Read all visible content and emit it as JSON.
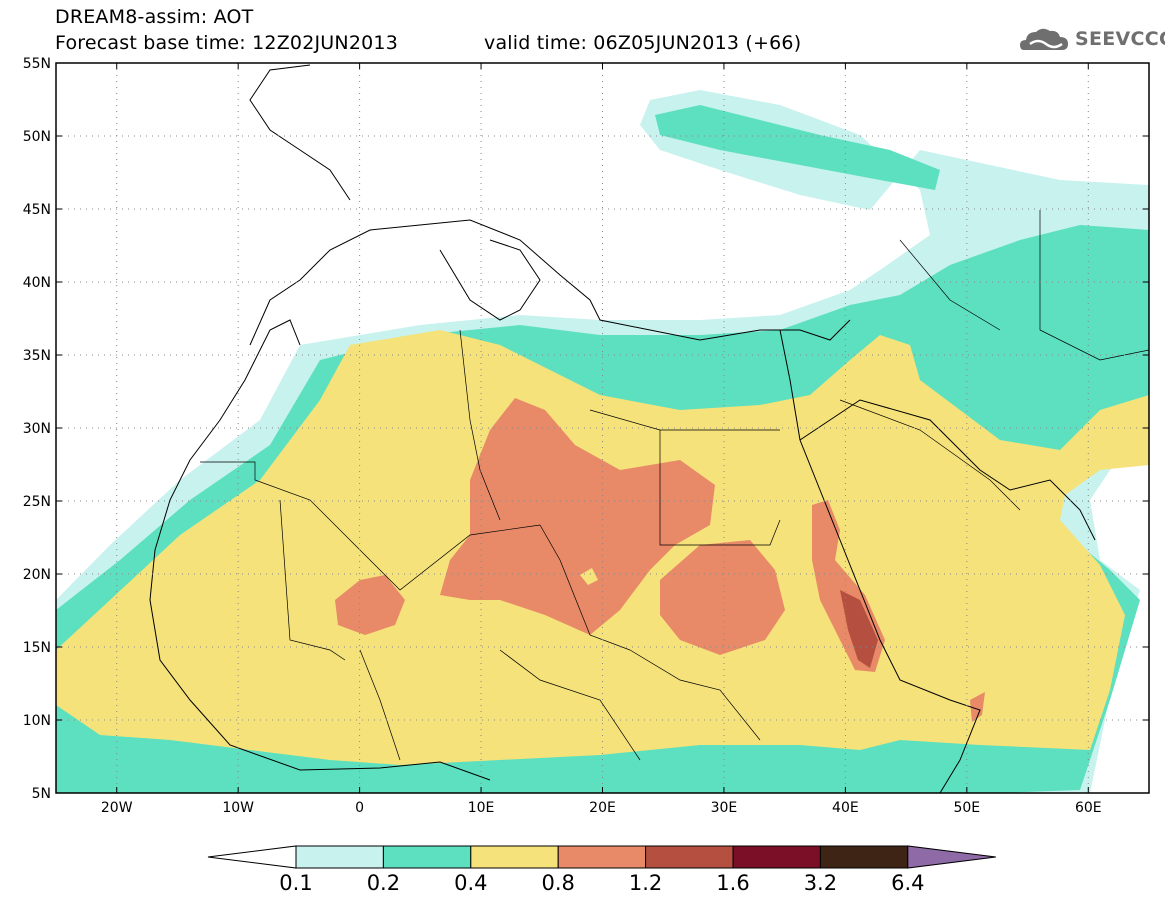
{
  "header": {
    "title": "DREAM8-assim: AOT",
    "base_time": "Forecast base time: 12Z02JUN2013",
    "valid_time": "valid time: 06Z05JUN2013 (+66)"
  },
  "logo": {
    "text": "SEEVCCC",
    "icon": "cloud-icon",
    "color": "#6f6f6f"
  },
  "map": {
    "lon_range": [
      -25,
      65
    ],
    "lat_range": [
      5,
      55
    ],
    "lon_ticks": [
      "20W",
      "10W",
      "0",
      "10E",
      "20E",
      "30E",
      "40E",
      "50E",
      "60E"
    ],
    "lat_ticks": [
      "5N",
      "10N",
      "15N",
      "20N",
      "25N",
      "30N",
      "35N",
      "40N",
      "45N",
      "50N",
      "55N"
    ],
    "grid": "dotted",
    "variable": "AOT"
  },
  "colorbar": {
    "colors": [
      "#ffffff",
      "#c8f2ee",
      "#5ce0bf",
      "#f5e27a",
      "#e88a68",
      "#b55040",
      "#7a0f27",
      "#3e2414",
      "#8e6aa7"
    ],
    "labels": [
      "0.1",
      "0.2",
      "0.4",
      "0.8",
      "1.2",
      "1.6",
      "3.2",
      "6.4"
    ]
  }
}
